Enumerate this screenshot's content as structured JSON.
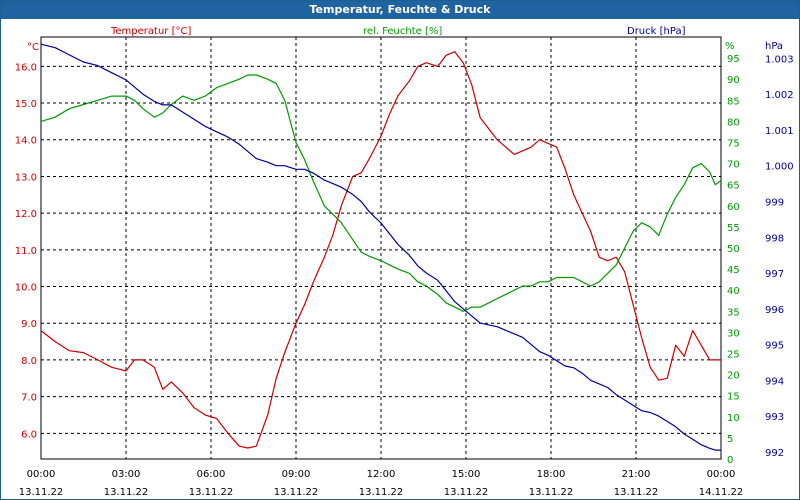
{
  "window": {
    "title": "Temperatur, Feuchte & Druck"
  },
  "colors": {
    "temperature": "#cc0000",
    "humidity": "#009900",
    "pressure": "#000099",
    "titlebar": "#1f64a0"
  },
  "chart_data": {
    "type": "line",
    "title": "Temperatur, Feuchte & Druck",
    "x_ticks_time": [
      "00:00",
      "03:00",
      "06:00",
      "09:00",
      "12:00",
      "15:00",
      "18:00",
      "21:00",
      "00:00"
    ],
    "x_ticks_date": [
      "13.11.22",
      "13.11.22",
      "13.11.22",
      "13.11.22",
      "13.11.22",
      "13.11.22",
      "13.11.22",
      "13.11.22",
      "14.11.22"
    ],
    "axes": {
      "temperature": {
        "label": "Temperatur [°C]",
        "unit": "°C",
        "ylim": [
          5.3,
          16.8
        ],
        "ticks": [
          "6.0",
          "7.0",
          "8.0",
          "9.0",
          "10.0",
          "11.0",
          "12.0",
          "13.0",
          "14.0",
          "15.0",
          "16.0"
        ]
      },
      "humidity": {
        "label": "rel. Feuchte [%]",
        "unit": "%",
        "ylim": [
          0,
          100
        ],
        "ticks": [
          "0",
          "5",
          "10",
          "15",
          "20",
          "25",
          "30",
          "35",
          "40",
          "45",
          "50",
          "55",
          "60",
          "65",
          "70",
          "75",
          "80",
          "85",
          "90",
          "95"
        ]
      },
      "pressure": {
        "label": "Druck [hPa]",
        "unit": "hPa",
        "ylim": [
          991.8,
          1003.6
        ],
        "ticks": [
          "992",
          "993",
          "994",
          "995",
          "996",
          "997",
          "998",
          "999",
          "1.000",
          "1.001",
          "1.002",
          "1.003"
        ]
      }
    },
    "series": [
      {
        "name": "Temperatur",
        "axis": "temperature",
        "x": [
          0,
          0.5,
          1,
          1.5,
          2,
          2.5,
          3,
          3.3,
          3.6,
          4,
          4.3,
          4.6,
          5,
          5.4,
          5.8,
          6.2,
          6.6,
          7,
          7.3,
          7.6,
          8,
          8.3,
          8.6,
          9,
          9.3,
          9.6,
          10,
          10.3,
          10.6,
          11,
          11.3,
          11.6,
          12,
          12.3,
          12.6,
          13,
          13.3,
          13.6,
          14,
          14.3,
          14.6,
          14.9,
          15.2,
          15.5,
          15.8,
          16.1,
          16.4,
          16.7,
          17,
          17.3,
          17.6,
          17.9,
          18.2,
          18.5,
          18.8,
          19.1,
          19.4,
          19.7,
          20,
          20.3,
          20.6,
          20.9,
          21.2,
          21.5,
          21.8,
          22.1,
          22.4,
          22.7,
          23,
          23.3,
          23.6,
          23.8,
          24
        ],
        "y": [
          8.8,
          8.5,
          8.25,
          8.2,
          8.0,
          7.8,
          7.7,
          8.0,
          8.0,
          7.8,
          7.2,
          7.4,
          7.1,
          6.7,
          6.5,
          6.4,
          6.0,
          5.65,
          5.6,
          5.65,
          6.5,
          7.5,
          8.2,
          9.0,
          9.5,
          10.1,
          10.8,
          11.4,
          12.2,
          13.0,
          13.1,
          13.5,
          14.1,
          14.7,
          15.2,
          15.6,
          16.0,
          16.1,
          16.0,
          16.3,
          16.4,
          16.1,
          15.5,
          14.6,
          14.3,
          14.0,
          13.8,
          13.6,
          13.7,
          13.8,
          14.0,
          13.9,
          13.8,
          13.2,
          12.5,
          12.0,
          11.5,
          10.8,
          10.7,
          10.8,
          10.4,
          9.5,
          8.6,
          7.8,
          7.45,
          7.5,
          8.4,
          8.1,
          8.8,
          8.4,
          8.0,
          8.0,
          8.0
        ]
      },
      {
        "name": "rel. Feuchte",
        "axis": "humidity",
        "x": [
          0,
          0.5,
          1,
          1.5,
          2,
          2.5,
          3,
          3.3,
          3.6,
          4,
          4.3,
          4.6,
          5,
          5.4,
          5.8,
          6.2,
          6.6,
          7,
          7.3,
          7.6,
          8,
          8.3,
          8.6,
          9,
          9.3,
          9.6,
          10,
          10.3,
          10.6,
          11,
          11.3,
          11.6,
          12,
          12.3,
          12.6,
          13,
          13.3,
          13.6,
          14,
          14.3,
          14.6,
          14.9,
          15.2,
          15.5,
          15.8,
          16.1,
          16.4,
          16.7,
          17,
          17.3,
          17.6,
          17.9,
          18.2,
          18.5,
          18.8,
          19.1,
          19.4,
          19.7,
          20,
          20.3,
          20.6,
          20.9,
          21.2,
          21.5,
          21.8,
          22.1,
          22.4,
          22.7,
          23,
          23.3,
          23.6,
          23.8,
          24
        ],
        "y": [
          80,
          81,
          83,
          84,
          85,
          86,
          86,
          85,
          83,
          81,
          82,
          84,
          86,
          85,
          86,
          88,
          89,
          90,
          91,
          91,
          90,
          89,
          85,
          75,
          71,
          66,
          60,
          58,
          56,
          52,
          49,
          48,
          47,
          46,
          45,
          44,
          42,
          41,
          39,
          37,
          36,
          35,
          36,
          36,
          37,
          38,
          39,
          40,
          41,
          41,
          42,
          42,
          43,
          43,
          43,
          42,
          41,
          42,
          44,
          46,
          50,
          54,
          56,
          55,
          53,
          58,
          62,
          65,
          69,
          70,
          68,
          65,
          66
        ]
      },
      {
        "name": "Druck",
        "axis": "pressure",
        "x": [
          0,
          0.5,
          1,
          1.5,
          2,
          2.5,
          3,
          3.3,
          3.6,
          4,
          4.3,
          4.6,
          5,
          5.4,
          5.8,
          6.2,
          6.6,
          7,
          7.3,
          7.6,
          8,
          8.3,
          8.6,
          9,
          9.3,
          9.6,
          10,
          10.3,
          10.6,
          11,
          11.3,
          11.6,
          12,
          12.3,
          12.6,
          13,
          13.3,
          13.6,
          14,
          14.3,
          14.6,
          14.9,
          15.2,
          15.5,
          15.8,
          16.1,
          16.4,
          16.7,
          17,
          17.3,
          17.6,
          17.9,
          18.2,
          18.5,
          18.8,
          19.1,
          19.4,
          19.7,
          20,
          20.3,
          20.6,
          20.9,
          21.2,
          21.5,
          21.8,
          22.1,
          22.4,
          22.7,
          23,
          23.3,
          23.6,
          23.8,
          24
        ],
        "y": [
          1003.4,
          1003.3,
          1003.1,
          1002.9,
          1002.8,
          1002.6,
          1002.4,
          1002.2,
          1002.0,
          1001.8,
          1001.7,
          1001.7,
          1001.5,
          1001.3,
          1001.1,
          1000.95,
          1000.8,
          1000.6,
          1000.4,
          1000.2,
          1000.1,
          1000.0,
          1000.0,
          999.9,
          999.9,
          999.8,
          999.6,
          999.5,
          999.4,
          999.2,
          999.0,
          998.7,
          998.4,
          998.1,
          997.8,
          997.5,
          997.2,
          997.0,
          996.8,
          996.5,
          996.2,
          996.0,
          995.8,
          995.6,
          995.55,
          995.5,
          995.4,
          995.3,
          995.2,
          995.0,
          994.8,
          994.7,
          994.55,
          994.4,
          994.35,
          994.2,
          994.0,
          993.9,
          993.8,
          993.6,
          993.45,
          993.3,
          993.15,
          993.1,
          993.0,
          992.85,
          992.7,
          992.5,
          992.35,
          992.2,
          992.1,
          992.05,
          992.05
        ]
      }
    ]
  }
}
